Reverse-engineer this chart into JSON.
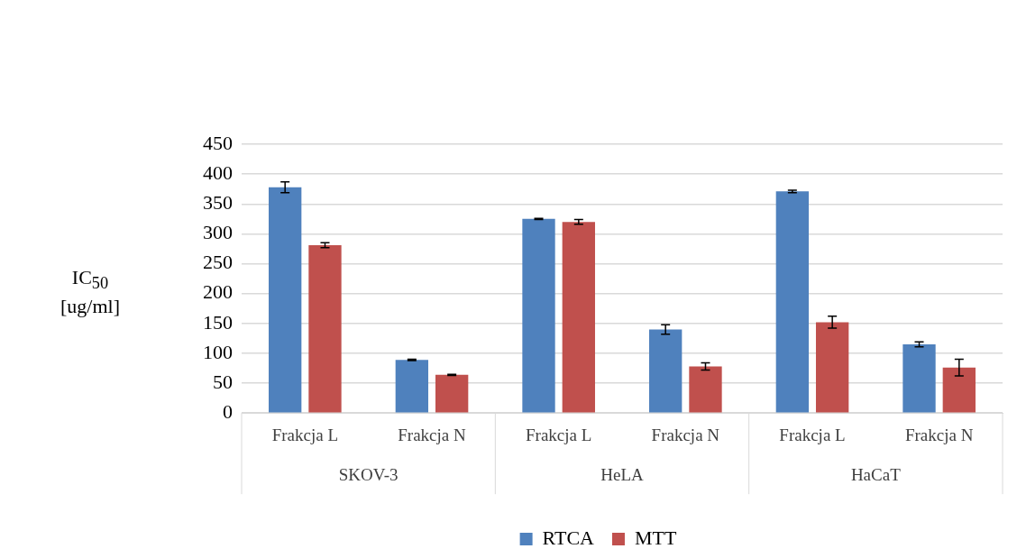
{
  "chart_data": {
    "type": "bar",
    "ylabel": "IC$_{50}$ [ug/ml]",
    "categories": [
      "Frakcja L",
      "Frakcja N",
      "Frakcja L",
      "Frakcja N",
      "Frakcja L",
      "Frakcja N"
    ],
    "annotations": [
      "SKOV-3",
      "HeLA",
      "HaCaT"
    ],
    "series": [
      {
        "name": "RTCA",
        "color": "#4f81bd",
        "values": [
          378,
          89,
          325,
          140,
          371,
          115
        ],
        "errors": [
          9,
          1,
          1,
          8,
          2,
          4
        ]
      },
      {
        "name": "MTT",
        "color": "#c0504d",
        "values": [
          281,
          64,
          320,
          78,
          152,
          76
        ],
        "errors": [
          4,
          1,
          4,
          6,
          10,
          14
        ]
      }
    ],
    "ylim": [
      0,
      450
    ],
    "yticks": [
      0,
      50,
      100,
      150,
      200,
      250,
      300,
      350,
      400,
      450
    ],
    "grid": "y",
    "legend": "bottom"
  }
}
